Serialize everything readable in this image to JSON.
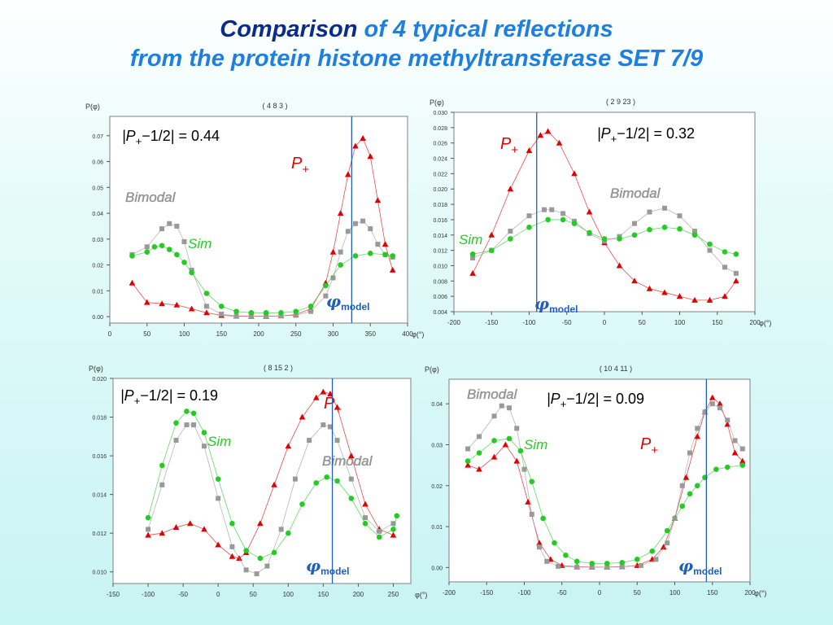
{
  "slide": {
    "title_part1": "Comparison",
    "title_part2": "of 4 typical reflections",
    "title_line2": "from the protein histone methyltransferase SET 7/9"
  },
  "colors": {
    "title_dark": "#0b2b8c",
    "title_light": "#1e7fe0",
    "p_plus": "#e00000",
    "bimodal": "#999999",
    "sim": "#22cc22",
    "model_line": "#1f5fbf"
  },
  "chart_data": [
    {
      "type": "scatter",
      "title": "( 4  8  3 )",
      "ylabel": "P(φ)",
      "xlabel": "φ(°)",
      "xlim": [
        0,
        400
      ],
      "ylim": [
        -0.0025,
        0.0775
      ],
      "xticks": [
        0,
        50,
        100,
        150,
        200,
        250,
        300,
        350,
        400
      ],
      "yticks": [
        0.0,
        0.01,
        0.02,
        0.03,
        0.04,
        0.05,
        0.06,
        0.07
      ],
      "ytick_decimals": 2,
      "phi_model": 325,
      "annotation": {
        "abs": "|P",
        "sub": "+",
        "rest": "−1/2| = 0.44"
      },
      "series": [
        {
          "name": "P+",
          "label": "P",
          "label_sub": "+",
          "marker": "triangle",
          "color": "#e00000",
          "x": [
            30,
            50,
            70,
            90,
            110,
            130,
            150,
            170,
            190,
            210,
            230,
            250,
            270,
            290,
            300,
            310,
            320,
            330,
            340,
            350,
            360,
            370,
            380
          ],
          "y": [
            0.013,
            0.0055,
            0.005,
            0.0045,
            0.003,
            0.0015,
            0.0005,
            0.0002,
            0.0001,
            0.0001,
            0.0003,
            0.0008,
            0.003,
            0.013,
            0.025,
            0.04,
            0.055,
            0.066,
            0.069,
            0.062,
            0.045,
            0.028,
            0.018
          ]
        },
        {
          "name": "Bimodal",
          "label": "Bimodal",
          "marker": "square",
          "color": "#999999",
          "x": [
            30,
            50,
            70,
            80,
            90,
            100,
            110,
            130,
            150,
            170,
            190,
            210,
            230,
            250,
            270,
            290,
            300,
            310,
            320,
            330,
            340,
            350,
            360,
            370,
            380
          ],
          "y": [
            0.024,
            0.027,
            0.034,
            0.036,
            0.035,
            0.029,
            0.018,
            0.004,
            0.001,
            0.0003,
            0.0002,
            0.0002,
            0.0003,
            0.0005,
            0.002,
            0.008,
            0.015,
            0.025,
            0.033,
            0.036,
            0.037,
            0.034,
            0.028,
            0.024,
            0.023
          ]
        },
        {
          "name": "Sim",
          "label": "Sim",
          "marker": "circle",
          "color": "#22cc22",
          "x": [
            30,
            50,
            60,
            70,
            80,
            90,
            100,
            110,
            130,
            150,
            170,
            190,
            210,
            230,
            250,
            270,
            290,
            310,
            330,
            350,
            370,
            380
          ],
          "y": [
            0.0235,
            0.025,
            0.027,
            0.0275,
            0.026,
            0.024,
            0.021,
            0.017,
            0.009,
            0.004,
            0.002,
            0.0015,
            0.0015,
            0.0015,
            0.002,
            0.004,
            0.012,
            0.02,
            0.0235,
            0.0245,
            0.024,
            0.0235
          ]
        }
      ]
    },
    {
      "type": "scatter",
      "title": "( 2  9  23 )",
      "ylabel": "P(φ)",
      "xlabel": "φ(°)",
      "xlim": [
        -200,
        200
      ],
      "ylim": [
        0.004,
        0.03
      ],
      "xticks": [
        -200,
        -150,
        -100,
        -50,
        0,
        50,
        100,
        150,
        200
      ],
      "yticks": [
        0.004,
        0.006,
        0.008,
        0.01,
        0.012,
        0.014,
        0.016,
        0.018,
        0.02,
        0.022,
        0.024,
        0.026,
        0.028,
        0.03
      ],
      "ytick_decimals": 3,
      "phi_model": -90,
      "annotation": {
        "abs": "|P",
        "sub": "+",
        "rest": "−1/2| = 0.32"
      },
      "series": [
        {
          "name": "P+",
          "label": "P",
          "label_sub": "+",
          "marker": "triangle",
          "color": "#e00000",
          "x": [
            -175,
            -150,
            -125,
            -100,
            -85,
            -75,
            -60,
            -40,
            -20,
            0,
            20,
            40,
            60,
            80,
            100,
            120,
            140,
            160,
            175
          ],
          "y": [
            0.009,
            0.014,
            0.02,
            0.025,
            0.027,
            0.0275,
            0.026,
            0.022,
            0.017,
            0.013,
            0.01,
            0.008,
            0.007,
            0.0065,
            0.006,
            0.0055,
            0.0055,
            0.006,
            0.008
          ]
        },
        {
          "name": "Bimodal",
          "label": "Bimodal",
          "marker": "square",
          "color": "#999999",
          "x": [
            -175,
            -150,
            -125,
            -100,
            -80,
            -70,
            -55,
            -40,
            -20,
            0,
            20,
            40,
            60,
            80,
            100,
            120,
            140,
            160,
            175
          ],
          "y": [
            0.011,
            0.012,
            0.0145,
            0.0165,
            0.0173,
            0.0173,
            0.0168,
            0.0158,
            0.0142,
            0.0132,
            0.0138,
            0.0155,
            0.017,
            0.0175,
            0.0165,
            0.0145,
            0.012,
            0.0098,
            0.009
          ]
        },
        {
          "name": "Sim",
          "label": "Sim",
          "marker": "circle",
          "color": "#22cc22",
          "x": [
            -175,
            -150,
            -125,
            -100,
            -75,
            -55,
            -40,
            -20,
            0,
            20,
            40,
            60,
            80,
            100,
            120,
            140,
            160,
            175
          ],
          "y": [
            0.0115,
            0.012,
            0.0135,
            0.015,
            0.016,
            0.016,
            0.0155,
            0.0143,
            0.0135,
            0.0135,
            0.014,
            0.0147,
            0.015,
            0.0148,
            0.014,
            0.0128,
            0.0118,
            0.0115
          ]
        }
      ]
    },
    {
      "type": "scatter",
      "title": "( 8  15  2 )",
      "ylabel": "P(φ)",
      "xlabel": "φ(°)",
      "xlim": [
        -150,
        275
      ],
      "ylim": [
        0.0094,
        0.02
      ],
      "xticks": [
        -150,
        -100,
        -50,
        0,
        50,
        100,
        150,
        200,
        250
      ],
      "yticks": [
        0.01,
        0.012,
        0.014,
        0.016,
        0.018,
        0.02
      ],
      "ytick_decimals": 3,
      "phi_model": 163,
      "annotation": {
        "abs": "|P",
        "sub": "+",
        "rest": "−1/2| = 0.19"
      },
      "series": [
        {
          "name": "P+",
          "label": "P",
          "label_sub": "+",
          "marker": "triangle",
          "color": "#e00000",
          "x": [
            -100,
            -80,
            -60,
            -40,
            -20,
            0,
            20,
            30,
            40,
            60,
            80,
            100,
            120,
            140,
            150,
            160,
            170,
            190,
            210,
            230,
            250
          ],
          "y": [
            0.0119,
            0.012,
            0.0123,
            0.0125,
            0.0122,
            0.0114,
            0.0108,
            0.0107,
            0.011,
            0.0125,
            0.0145,
            0.0165,
            0.018,
            0.019,
            0.0193,
            0.0192,
            0.0185,
            0.016,
            0.0135,
            0.0122,
            0.0119
          ]
        },
        {
          "name": "Bimodal",
          "label": "Bimodal",
          "marker": "square",
          "color": "#999999",
          "x": [
            -100,
            -80,
            -60,
            -45,
            -35,
            -20,
            0,
            20,
            40,
            55,
            70,
            90,
            110,
            130,
            150,
            160,
            170,
            190,
            210,
            230,
            250
          ],
          "y": [
            0.0122,
            0.0145,
            0.0168,
            0.0176,
            0.0176,
            0.0165,
            0.0138,
            0.0113,
            0.0101,
            0.0099,
            0.0103,
            0.0122,
            0.0148,
            0.0168,
            0.0176,
            0.0175,
            0.0168,
            0.0148,
            0.0128,
            0.0121,
            0.0125
          ]
        },
        {
          "name": "Sim",
          "label": "Sim",
          "marker": "circle",
          "color": "#22cc22",
          "x": [
            -100,
            -80,
            -60,
            -45,
            -35,
            -20,
            0,
            20,
            40,
            60,
            80,
            100,
            120,
            140,
            155,
            170,
            190,
            210,
            230,
            250,
            255
          ],
          "y": [
            0.0128,
            0.0155,
            0.0177,
            0.0183,
            0.0182,
            0.0172,
            0.0148,
            0.0125,
            0.0111,
            0.0107,
            0.011,
            0.012,
            0.0135,
            0.0146,
            0.0149,
            0.0147,
            0.0138,
            0.0125,
            0.0118,
            0.0122,
            0.0129
          ]
        }
      ]
    },
    {
      "type": "scatter",
      "title": "( 10  4  11 )",
      "ylabel": "P(φ)",
      "xlabel": "φ(°)",
      "xlim": [
        -200,
        200
      ],
      "ylim": [
        -0.0035,
        0.046
      ],
      "xticks": [
        -200,
        -150,
        -100,
        -50,
        0,
        50,
        100,
        150,
        200
      ],
      "yticks": [
        0.0,
        0.01,
        0.02,
        0.03,
        0.04
      ],
      "ytick_decimals": 2,
      "phi_model": 142,
      "annotation": {
        "abs": "|P",
        "sub": "+",
        "rest": "−1/2| = 0.09"
      },
      "series": [
        {
          "name": "P+",
          "label": "P",
          "label_sub": "+",
          "marker": "triangle",
          "color": "#e00000",
          "x": [
            -175,
            -160,
            -140,
            -125,
            -110,
            -95,
            -80,
            -65,
            -50,
            -30,
            -10,
            10,
            30,
            50,
            70,
            85,
            100,
            115,
            130,
            140,
            150,
            160,
            170,
            180,
            190
          ],
          "y": [
            0.025,
            0.024,
            0.027,
            0.03,
            0.026,
            0.016,
            0.006,
            0.002,
            0.0005,
            0.0002,
            0.0001,
            0.0001,
            0.0002,
            0.0005,
            0.002,
            0.005,
            0.012,
            0.022,
            0.032,
            0.038,
            0.0415,
            0.04,
            0.035,
            0.028,
            0.026
          ]
        },
        {
          "name": "Bimodal",
          "label": "Bimodal",
          "marker": "square",
          "color": "#999999",
          "x": [
            -175,
            -160,
            -140,
            -130,
            -120,
            -110,
            -100,
            -90,
            -80,
            -70,
            -55,
            -30,
            -10,
            10,
            30,
            55,
            75,
            90,
            100,
            110,
            120,
            130,
            140,
            150,
            160,
            170,
            180,
            190
          ],
          "y": [
            0.029,
            0.032,
            0.037,
            0.0395,
            0.039,
            0.034,
            0.024,
            0.013,
            0.005,
            0.0015,
            0.0003,
            0.0001,
            0.0001,
            0.0001,
            0.0002,
            0.0005,
            0.002,
            0.006,
            0.012,
            0.02,
            0.028,
            0.034,
            0.038,
            0.04,
            0.039,
            0.036,
            0.031,
            0.029
          ]
        },
        {
          "name": "Sim",
          "label": "Sim",
          "marker": "circle",
          "color": "#22cc22",
          "x": [
            -175,
            -160,
            -140,
            -120,
            -105,
            -90,
            -75,
            -60,
            -45,
            -30,
            -10,
            10,
            30,
            50,
            70,
            90,
            110,
            120,
            130,
            140,
            155,
            170,
            190
          ],
          "y": [
            0.026,
            0.028,
            0.031,
            0.0315,
            0.0285,
            0.021,
            0.012,
            0.006,
            0.003,
            0.0015,
            0.001,
            0.001,
            0.0012,
            0.002,
            0.004,
            0.009,
            0.015,
            0.018,
            0.02,
            0.022,
            0.024,
            0.0245,
            0.025
          ]
        }
      ]
    }
  ]
}
